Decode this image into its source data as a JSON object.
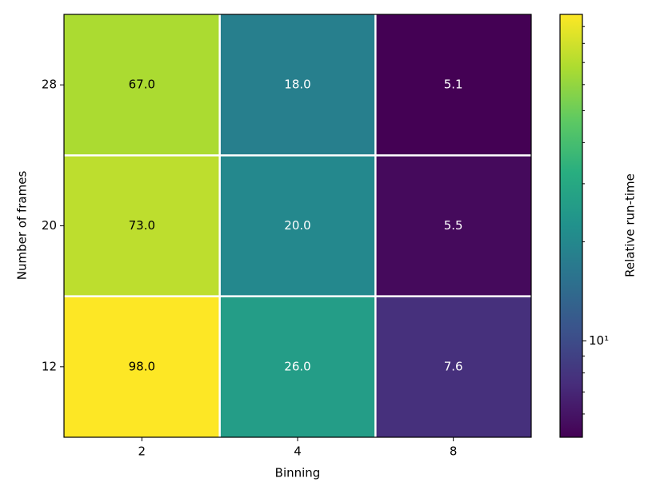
{
  "chart_data": {
    "type": "heatmap",
    "x_label": "Binning",
    "y_label": "Number of frames",
    "x_categories": [
      "2",
      "4",
      "8"
    ],
    "y_categories": [
      "28",
      "20",
      "12"
    ],
    "values": [
      [
        67,
        18,
        5.1
      ],
      [
        73,
        20,
        5.5
      ],
      [
        98,
        26,
        7.6
      ]
    ],
    "value_labels": [
      [
        "67.0",
        "18.0",
        "5.1"
      ],
      [
        "73.0",
        "20.0",
        "5.5"
      ],
      [
        "98.0",
        "26.0",
        "7.6"
      ]
    ],
    "colorbar": {
      "label": "Relative run-time",
      "scale": "log",
      "colormap": "viridis",
      "lim": [
        5.1,
        98
      ],
      "ticks": [
        {
          "value": 10,
          "label": "10¹"
        }
      ],
      "minor_ticks": [
        6,
        7,
        8,
        9,
        20,
        30,
        40,
        50,
        60,
        70,
        80,
        90
      ]
    }
  }
}
